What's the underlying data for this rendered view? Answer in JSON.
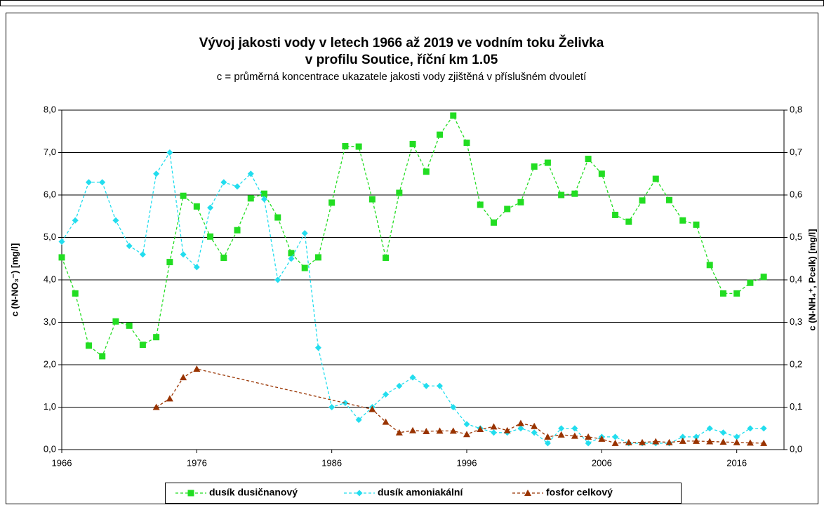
{
  "chart_data": {
    "type": "line",
    "title": [
      "Vývoj jakosti vody v letech 1966 až 2019 ve vodním toku Želivka",
      "v profilu Soutice, říční km 1.05"
    ],
    "subtitle": "c = průměrná koncentrace ukazatele jakosti vody zjištěná v příslušném dvouletí",
    "y_label": "c (N-NO₃⁻) [mg/l]",
    "y2_label": "c (N-NH₄⁺, Pcelk) [mg/l]",
    "x": [
      1966,
      1967,
      1968,
      1969,
      1970,
      1971,
      1972,
      1973,
      1974,
      1975,
      1976,
      1977,
      1978,
      1979,
      1980,
      1981,
      1982,
      1983,
      1984,
      1985,
      1986,
      1987,
      1988,
      1989,
      1990,
      1991,
      1992,
      1993,
      1994,
      1995,
      1996,
      1997,
      1998,
      1999,
      2000,
      2001,
      2002,
      2003,
      2004,
      2005,
      2006,
      2007,
      2008,
      2009,
      2010,
      2011,
      2012,
      2013,
      2014,
      2015,
      2016,
      2017,
      2018
    ],
    "xlim": [
      1966,
      2019.5
    ],
    "xticks": [
      1966,
      1976,
      1986,
      1996,
      2006,
      2016
    ],
    "ylim": [
      0,
      8
    ],
    "yticks": [
      {
        "value": 0,
        "label": "0,0"
      },
      {
        "value": 1,
        "label": "1,0"
      },
      {
        "value": 2,
        "label": "2,0"
      },
      {
        "value": 3,
        "label": "3,0"
      },
      {
        "value": 4,
        "label": "4,0"
      },
      {
        "value": 5,
        "label": "5,0"
      },
      {
        "value": 6,
        "label": "6,0"
      },
      {
        "value": 7,
        "label": "7,0"
      },
      {
        "value": 8,
        "label": "8,0"
      }
    ],
    "y2lim": [
      0,
      0.8
    ],
    "y2ticks": [
      {
        "value": 0,
        "label": "0,0"
      },
      {
        "value": 0.1,
        "label": "0,1"
      },
      {
        "value": 0.2,
        "label": "0,2"
      },
      {
        "value": 0.3,
        "label": "0,3"
      },
      {
        "value": 0.4,
        "label": "0,4"
      },
      {
        "value": 0.5,
        "label": "0,5"
      },
      {
        "value": 0.6,
        "label": "0,6"
      },
      {
        "value": 0.7,
        "label": "0,7"
      },
      {
        "value": 0.8,
        "label": "0,8"
      }
    ],
    "grid": true,
    "legend": "bottom",
    "series": [
      {
        "name": "dusík dusičnanový",
        "color": "#22dd22",
        "marker": "square",
        "axis": "y",
        "values": [
          4.53,
          3.68,
          2.45,
          2.2,
          3.02,
          2.92,
          2.47,
          2.65,
          4.42,
          5.98,
          5.73,
          5.02,
          4.52,
          5.17,
          5.92,
          6.03,
          5.47,
          4.63,
          4.28,
          4.53,
          5.82,
          7.15,
          7.14,
          5.9,
          4.52,
          6.05,
          7.2,
          6.55,
          7.42,
          7.87,
          7.23,
          5.77,
          5.35,
          5.67,
          5.83,
          6.67,
          6.76,
          6.0,
          6.03,
          6.85,
          6.5,
          5.53,
          5.37,
          5.87,
          6.38,
          5.88,
          5.4,
          5.3,
          4.35,
          3.68,
          3.68,
          3.93,
          4.07
        ]
      },
      {
        "name": "dusík amoniakální",
        "color": "#22ddee",
        "marker": "diamond",
        "axis": "y2",
        "values": [
          0.49,
          0.54,
          0.63,
          0.63,
          0.54,
          0.48,
          0.46,
          0.65,
          0.7,
          0.46,
          0.43,
          0.57,
          0.63,
          0.62,
          0.65,
          0.59,
          0.4,
          0.45,
          0.51,
          0.24,
          0.1,
          0.11,
          0.07,
          0.1,
          0.13,
          0.15,
          0.17,
          0.15,
          0.15,
          0.1,
          0.06,
          0.05,
          0.04,
          0.04,
          0.05,
          0.04,
          0.015,
          0.05,
          0.05,
          0.015,
          0.03,
          0.03,
          0.015,
          0.015,
          0.015,
          0.015,
          0.03,
          0.03,
          0.05,
          0.04,
          0.03,
          0.05,
          0.05
        ]
      },
      {
        "name": "fosfor celkový",
        "color": "#993300",
        "marker": "triangle",
        "axis": "y2",
        "x": [
          1973,
          1974,
          1975,
          1976,
          1989,
          1990,
          1991,
          1992,
          1993,
          1994,
          1995,
          1996,
          1997,
          1998,
          1999,
          2000,
          2001,
          2002,
          2003,
          2004,
          2005,
          2006,
          2007,
          2008,
          2009,
          2010,
          2011,
          2012,
          2013,
          2014,
          2015,
          2016,
          2017,
          2018
        ],
        "values": [
          0.1,
          0.12,
          0.17,
          0.19,
          0.095,
          0.065,
          0.04,
          0.045,
          0.043,
          0.044,
          0.044,
          0.036,
          0.048,
          0.054,
          0.045,
          0.062,
          0.055,
          0.03,
          0.035,
          0.032,
          0.03,
          0.025,
          0.015,
          0.017,
          0.017,
          0.019,
          0.017,
          0.02,
          0.02,
          0.019,
          0.018,
          0.017,
          0.016,
          0.015
        ]
      }
    ]
  }
}
